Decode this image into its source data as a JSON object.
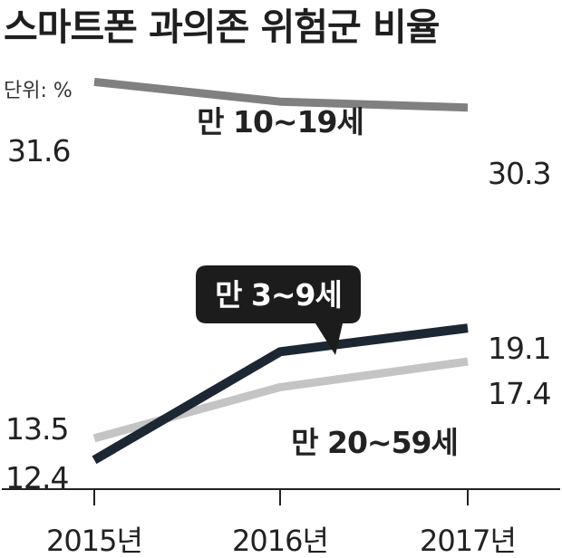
{
  "title": "스마트폰 과의존 위험군 비율",
  "unit_label": "단위: %",
  "chart_data": {
    "type": "line",
    "title": "스마트폰 과의존 위험군 비율",
    "unit": "단위: %",
    "categories": [
      "2015년",
      "2016년",
      "2017년"
    ],
    "ylim": [
      10,
      33
    ],
    "grid": false,
    "series": [
      {
        "name": "만 10~19세",
        "values": [
          31.6,
          30.6,
          30.3
        ],
        "color": "#808080",
        "labels": {
          "start": "31.6",
          "end": "30.3"
        }
      },
      {
        "name": "만 3~9세",
        "values": [
          12.4,
          17.9,
          19.1
        ],
        "color": "#1c2733",
        "labels": {
          "start": "12.4",
          "end": "19.1"
        },
        "callout": true
      },
      {
        "name": "만 20~59세",
        "values": [
          13.5,
          16.1,
          17.4
        ],
        "color": "#c4c4c4",
        "labels": {
          "start": "13.5",
          "end": "17.4"
        }
      }
    ]
  }
}
